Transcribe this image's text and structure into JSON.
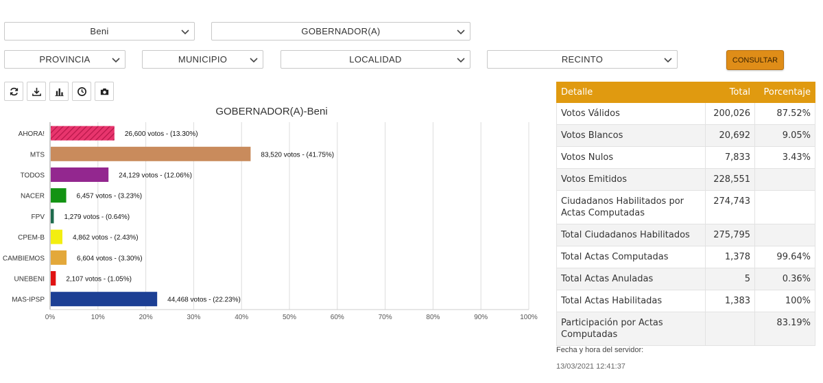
{
  "filters": {
    "departamento": "Beni",
    "cargo": "GOBERNADOR(A)",
    "provincia": "PROVINCIA",
    "municipio": "MUNICIPIO",
    "localidad": "LOCALIDAD",
    "recinto": "RECINTO"
  },
  "consultar_label": "CONSULTAR",
  "toolbar": [
    "refresh-icon",
    "download-icon",
    "bar-chart-icon",
    "clock-icon",
    "camera-icon"
  ],
  "chart_data": {
    "type": "bar",
    "orientation": "horizontal",
    "title": "GOBERNADOR(A)-Beni",
    "categories": [
      "AHORA!",
      "MTS",
      "TODOS",
      "NACER",
      "FPV",
      "CPEM-B",
      "CAMBIEMOS",
      "UNEBENI",
      "MAS-IPSP"
    ],
    "values": [
      13.3,
      41.75,
      12.06,
      3.23,
      0.64,
      2.43,
      3.3,
      1.05,
      22.23
    ],
    "labels": [
      "26,600 votos - (13.30%)",
      "83,520 votos - (41.75%)",
      "24,129 votos - (12.06%)",
      "6,457 votos - (3.23%)",
      "1,279 votos - (0.64%)",
      "4,862 votos - (2.43%)",
      "6,604 votos - (3.30%)",
      "2,107 votos - (1.05%)",
      "44,468 votos - (22.23%)"
    ],
    "colors": [
      "#e8356d",
      "#c98b5c",
      "#93278f",
      "#139313",
      "#1e6b4d",
      "#f3ee10",
      "#e3a83a",
      "#e01212",
      "#1c3f94"
    ],
    "hatched": [
      true,
      false,
      false,
      false,
      false,
      false,
      false,
      false,
      false
    ],
    "xticks": [
      "0%",
      "10%",
      "20%",
      "30%",
      "40%",
      "50%",
      "60%",
      "70%",
      "80%",
      "90%",
      "100%"
    ],
    "xlim": [
      0,
      100
    ],
    "grid": true
  },
  "table": {
    "headers": [
      "Detalle",
      "Total",
      "Porcentaje"
    ],
    "rows": [
      [
        "Votos Válidos",
        "200,026",
        "87.52%"
      ],
      [
        "Votos Blancos",
        "20,692",
        "9.05%"
      ],
      [
        "Votos Nulos",
        "7,833",
        "3.43%"
      ],
      [
        "Votos Emitidos",
        "228,551",
        ""
      ],
      [
        "Ciudadanos Habilitados por Actas Computadas",
        "274,743",
        ""
      ],
      [
        "Total Ciudadanos Habilitados",
        "275,795",
        ""
      ],
      [
        "Total Actas Computadas",
        "1,378",
        "99.64%"
      ],
      [
        "Total Actas Anuladas",
        "5",
        "0.36%"
      ],
      [
        "Total Actas Habilitadas",
        "1,383",
        "100%"
      ],
      [
        "Participación por Actas Computadas",
        "",
        "83.19%"
      ]
    ]
  },
  "server": {
    "label": "Fecha y hora del servidor:",
    "datetime": "13/03/2021 12:41:37"
  }
}
